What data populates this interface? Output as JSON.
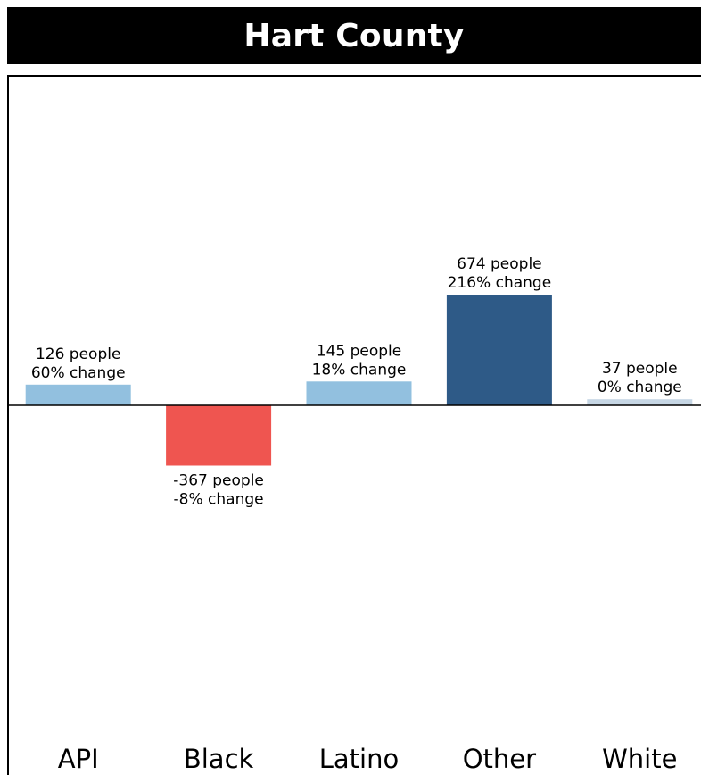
{
  "chart_data": {
    "type": "bar",
    "title": "Hart County",
    "categories": [
      "API",
      "Black",
      "Latino",
      "Other",
      "White"
    ],
    "values": [
      126,
      -367,
      145,
      674,
      37
    ],
    "percent_change": [
      "60%",
      "-8%",
      "18%",
      "216%",
      "0%"
    ],
    "data_labels": [
      [
        "126 people",
        "60% change"
      ],
      [
        "-367 people",
        "-8% change"
      ],
      [
        "145 people",
        "18% change"
      ],
      [
        "674 people",
        "216% change"
      ],
      [
        "37 people",
        "0% change"
      ]
    ],
    "colors": [
      "#92c0df",
      "#ef5550",
      "#92c0df",
      "#2e5a87",
      "#c6d6e4"
    ],
    "ylim": [
      -2000,
      2000
    ],
    "grid": false,
    "legend": "none"
  }
}
